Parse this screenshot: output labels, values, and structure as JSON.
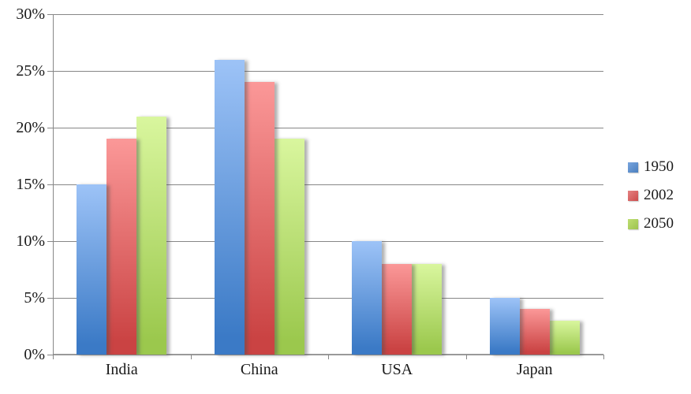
{
  "chart_data": {
    "type": "bar",
    "title": "",
    "xlabel": "",
    "ylabel": "",
    "categories": [
      "India",
      "China",
      "USA",
      "Japan"
    ],
    "series": [
      {
        "name": "1950",
        "values": [
          15,
          26,
          10,
          5
        ],
        "color_top": "#9DC3F7",
        "color_bottom": "#3B7AC6",
        "legend_color_top": "#79A5DE",
        "legend_color_bottom": "#4B7FBE"
      },
      {
        "name": "2002",
        "values": [
          19,
          24,
          8,
          4
        ],
        "color_top": "#FB9898",
        "color_bottom": "#CA4343",
        "legend_color_top": "#E58282",
        "legend_color_bottom": "#CC4C4C"
      },
      {
        "name": "2050",
        "values": [
          21,
          19,
          8,
          3
        ],
        "color_top": "#D9F69E",
        "color_bottom": "#9BC84D",
        "legend_color_top": "#BEDF72",
        "legend_color_bottom": "#9DC24F"
      }
    ],
    "ylim": [
      0,
      30
    ],
    "yticks": [
      30,
      25,
      20,
      15,
      10,
      5,
      0
    ],
    "ytick_suffix": "%",
    "grid": true,
    "gridline_color": "#878787",
    "axis_color": "#999999",
    "legend_position": "right"
  }
}
